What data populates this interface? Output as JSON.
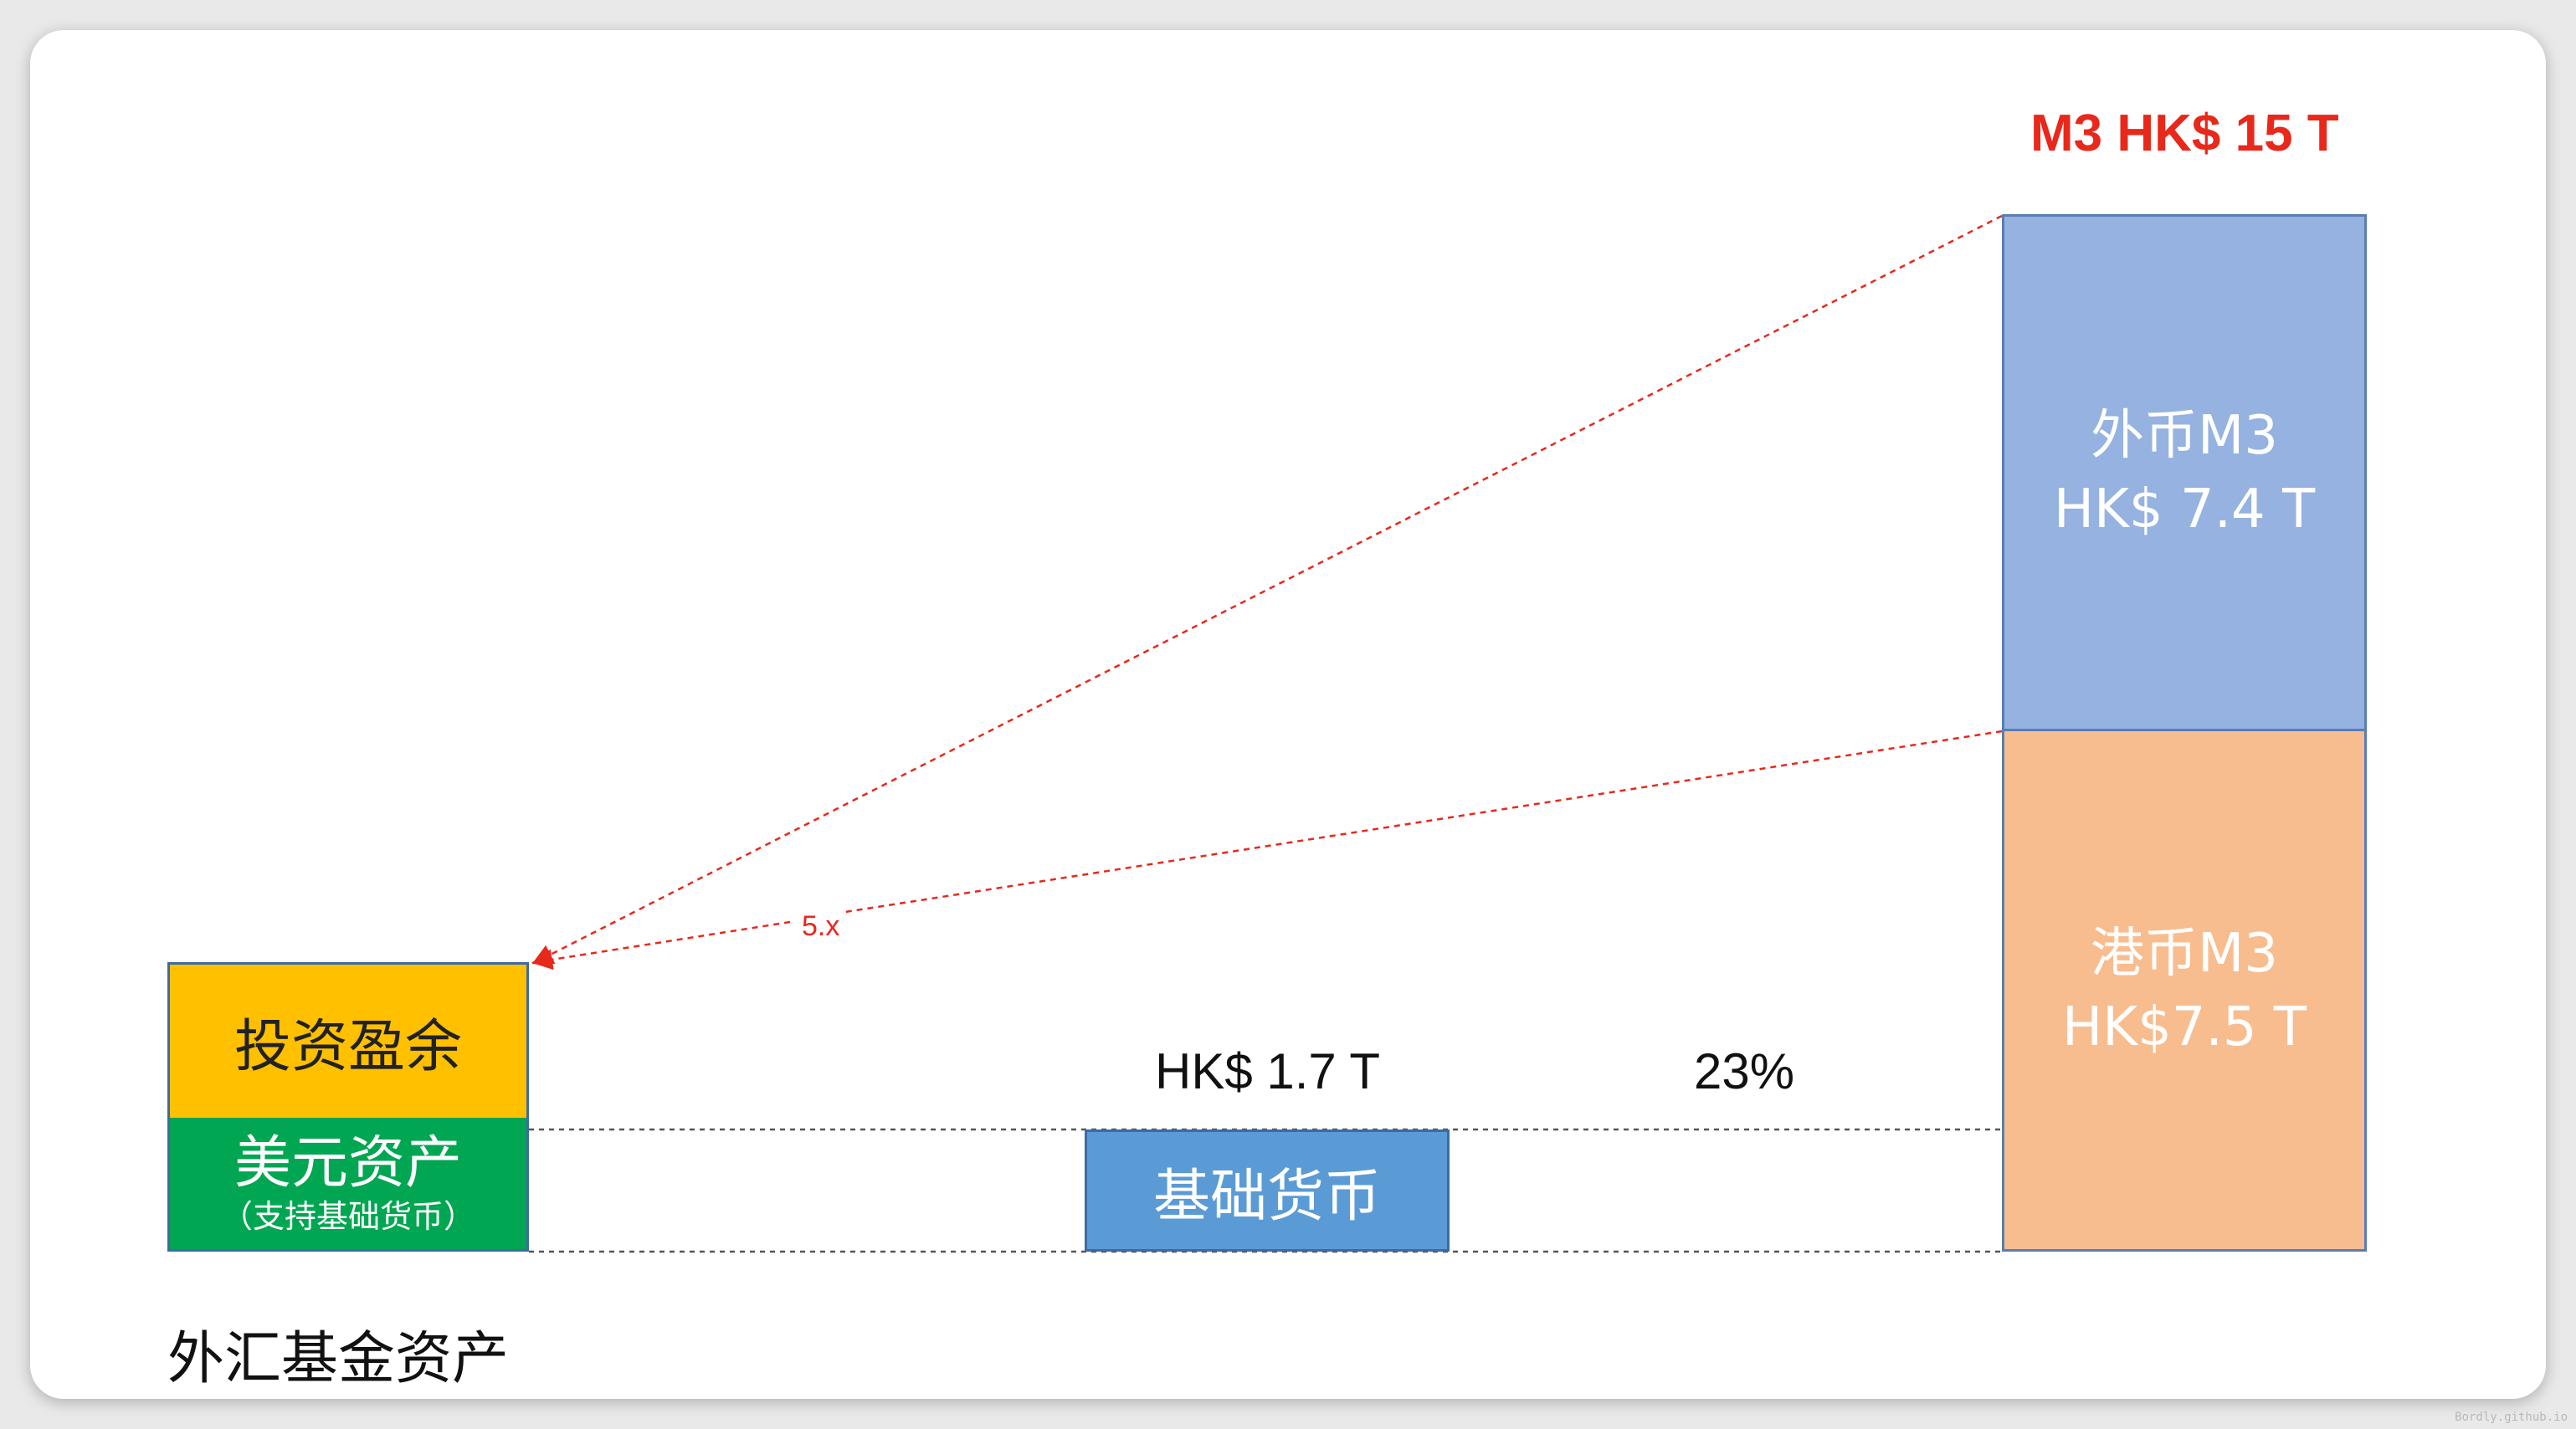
{
  "title": "M3 HK$ 15 T",
  "left_stack": {
    "top_label": "投资盈余",
    "bottom_label": "美元资产",
    "bottom_sublabel": "（支持基础货币）"
  },
  "base_money": {
    "label": "基础货币",
    "value": "HK$ 1.7 T"
  },
  "ratio": "23%",
  "multiplier": "5.x",
  "m3_stack": {
    "foreign": {
      "line1": "外币M3",
      "line2": "HK$ 7.4 T"
    },
    "hkd": {
      "line1": "港币M3",
      "line2": "HK$7.5 T"
    }
  },
  "caption": "外汇基金资产",
  "watermark": "Bordly.github.io",
  "colors": {
    "invest_surplus": "#ffc000",
    "usd_assets": "#00a651",
    "base_money": "#5b9bd5",
    "foreign_m3": "#95b2e0",
    "hkd_m3": "#f8bd8f",
    "accent_red": "#e8281b"
  }
}
